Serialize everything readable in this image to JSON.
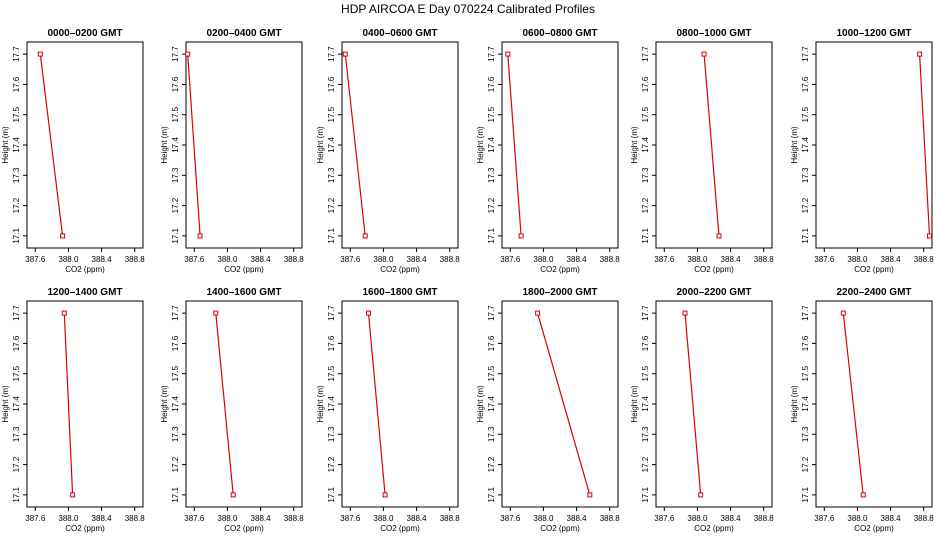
{
  "figure_title": "HDP  AIRCOA E  Day 070224  Calibrated Profiles",
  "colors": {
    "line": "#dd0000",
    "marker": "#dd0000",
    "axis": "#000000"
  },
  "chart_data": [
    {
      "type": "line",
      "title": "0000–0200 GMT",
      "xlabel": "CO2 (ppm)",
      "ylabel": "Height (m)",
      "xlim": [
        387.5,
        388.9
      ],
      "ylim": [
        17.06,
        17.74
      ],
      "xticks": [
        "387.6",
        "388.0",
        "388.4",
        "388.8"
      ],
      "xtick_values": [
        387.6,
        388.0,
        388.4,
        388.8
      ],
      "yticks": [
        "17.1",
        "17.2",
        "17.3",
        "17.4",
        "17.5",
        "17.6",
        "17.7"
      ],
      "ytick_values": [
        17.1,
        17.2,
        17.3,
        17.4,
        17.5,
        17.6,
        17.7
      ],
      "x": [
        387.66,
        387.93
      ],
      "y": [
        17.7,
        17.1
      ]
    },
    {
      "type": "line",
      "title": "0200–0400 GMT",
      "xlabel": "CO2 (ppm)",
      "ylabel": "Height (m)",
      "xlim": [
        387.5,
        388.9
      ],
      "ylim": [
        17.06,
        17.74
      ],
      "xticks": [
        "387.6",
        "388.0",
        "388.4",
        "388.8"
      ],
      "xtick_values": [
        387.6,
        388.0,
        388.4,
        388.8
      ],
      "yticks": [
        "17.1",
        "17.2",
        "17.3",
        "17.4",
        "17.5",
        "17.6",
        "17.7"
      ],
      "ytick_values": [
        17.1,
        17.2,
        17.3,
        17.4,
        17.5,
        17.6,
        17.7
      ],
      "x": [
        387.52,
        387.67
      ],
      "y": [
        17.7,
        17.1
      ]
    },
    {
      "type": "line",
      "title": "0400–0600 GMT",
      "xlabel": "CO2 (ppm)",
      "ylabel": "Height (m)",
      "xlim": [
        387.5,
        388.9
      ],
      "ylim": [
        17.06,
        17.74
      ],
      "xticks": [
        "387.6",
        "388.0",
        "388.4",
        "388.8"
      ],
      "xtick_values": [
        387.6,
        388.0,
        388.4,
        388.8
      ],
      "yticks": [
        "17.1",
        "17.2",
        "17.3",
        "17.4",
        "17.5",
        "17.6",
        "17.7"
      ],
      "ytick_values": [
        17.1,
        17.2,
        17.3,
        17.4,
        17.5,
        17.6,
        17.7
      ],
      "x": [
        387.54,
        387.78
      ],
      "y": [
        17.7,
        17.1
      ]
    },
    {
      "type": "line",
      "title": "0600–0800 GMT",
      "xlabel": "CO2 (ppm)",
      "ylabel": "Height (m)",
      "xlim": [
        387.5,
        388.9
      ],
      "ylim": [
        17.06,
        17.74
      ],
      "xticks": [
        "387.6",
        "388.0",
        "388.4",
        "388.8"
      ],
      "xtick_values": [
        387.6,
        388.0,
        388.4,
        388.8
      ],
      "yticks": [
        "17.1",
        "17.2",
        "17.3",
        "17.4",
        "17.5",
        "17.6",
        "17.7"
      ],
      "ytick_values": [
        17.1,
        17.2,
        17.3,
        17.4,
        17.5,
        17.6,
        17.7
      ],
      "x": [
        387.57,
        387.73
      ],
      "y": [
        17.7,
        17.1
      ]
    },
    {
      "type": "line",
      "title": "0800–1000 GMT",
      "xlabel": "CO2 (ppm)",
      "ylabel": "Height (m)",
      "xlim": [
        387.5,
        388.9
      ],
      "ylim": [
        17.06,
        17.74
      ],
      "xticks": [
        "387.6",
        "388.0",
        "388.4",
        "388.8"
      ],
      "xtick_values": [
        387.6,
        388.0,
        388.4,
        388.8
      ],
      "yticks": [
        "17.1",
        "17.2",
        "17.3",
        "17.4",
        "17.5",
        "17.6",
        "17.7"
      ],
      "ytick_values": [
        17.1,
        17.2,
        17.3,
        17.4,
        17.5,
        17.6,
        17.7
      ],
      "x": [
        388.08,
        388.26
      ],
      "y": [
        17.7,
        17.1
      ]
    },
    {
      "type": "line",
      "title": "1000–1200 GMT",
      "xlabel": "CO2 (ppm)",
      "ylabel": "Height (m)",
      "xlim": [
        387.5,
        388.9
      ],
      "ylim": [
        17.06,
        17.74
      ],
      "xticks": [
        "387.6",
        "388.0",
        "388.4",
        "388.8"
      ],
      "xtick_values": [
        387.6,
        388.0,
        388.4,
        388.8
      ],
      "yticks": [
        "17.1",
        "17.2",
        "17.3",
        "17.4",
        "17.5",
        "17.6",
        "17.7"
      ],
      "ytick_values": [
        17.1,
        17.2,
        17.3,
        17.4,
        17.5,
        17.6,
        17.7
      ],
      "x": [
        388.75,
        388.87
      ],
      "y": [
        17.7,
        17.1
      ]
    },
    {
      "type": "line",
      "title": "1200–1400 GMT",
      "xlabel": "CO2 (ppm)",
      "ylabel": "Height (m)",
      "xlim": [
        387.5,
        388.9
      ],
      "ylim": [
        17.06,
        17.74
      ],
      "xticks": [
        "387.6",
        "388.0",
        "388.4",
        "388.8"
      ],
      "xtick_values": [
        387.6,
        388.0,
        388.4,
        388.8
      ],
      "yticks": [
        "17.1",
        "17.2",
        "17.3",
        "17.4",
        "17.5",
        "17.6",
        "17.7"
      ],
      "ytick_values": [
        17.1,
        17.2,
        17.3,
        17.4,
        17.5,
        17.6,
        17.7
      ],
      "x": [
        387.95,
        388.05
      ],
      "y": [
        17.7,
        17.1
      ]
    },
    {
      "type": "line",
      "title": "1400–1600 GMT",
      "xlabel": "CO2 (ppm)",
      "ylabel": "Height (m)",
      "xlim": [
        387.5,
        388.9
      ],
      "ylim": [
        17.06,
        17.74
      ],
      "xticks": [
        "387.6",
        "388.0",
        "388.4",
        "388.8"
      ],
      "xtick_values": [
        387.6,
        388.0,
        388.4,
        388.8
      ],
      "yticks": [
        "17.1",
        "17.2",
        "17.3",
        "17.4",
        "17.5",
        "17.6",
        "17.7"
      ],
      "ytick_values": [
        17.1,
        17.2,
        17.3,
        17.4,
        17.5,
        17.6,
        17.7
      ],
      "x": [
        387.86,
        388.07
      ],
      "y": [
        17.7,
        17.1
      ]
    },
    {
      "type": "line",
      "title": "1600–1800 GMT",
      "xlabel": "CO2 (ppm)",
      "ylabel": "Height (m)",
      "xlim": [
        387.5,
        388.9
      ],
      "ylim": [
        17.06,
        17.74
      ],
      "xticks": [
        "387.6",
        "388.0",
        "388.4",
        "388.8"
      ],
      "xtick_values": [
        387.6,
        388.0,
        388.4,
        388.8
      ],
      "yticks": [
        "17.1",
        "17.2",
        "17.3",
        "17.4",
        "17.5",
        "17.6",
        "17.7"
      ],
      "ytick_values": [
        17.1,
        17.2,
        17.3,
        17.4,
        17.5,
        17.6,
        17.7
      ],
      "x": [
        387.82,
        388.02
      ],
      "y": [
        17.7,
        17.1
      ]
    },
    {
      "type": "line",
      "title": "1800–2000 GMT",
      "xlabel": "CO2 (ppm)",
      "ylabel": "Height (m)",
      "xlim": [
        387.5,
        388.9
      ],
      "ylim": [
        17.06,
        17.74
      ],
      "xticks": [
        "387.6",
        "388.0",
        "388.4",
        "388.8"
      ],
      "xtick_values": [
        387.6,
        388.0,
        388.4,
        388.8
      ],
      "yticks": [
        "17.1",
        "17.2",
        "17.3",
        "17.4",
        "17.5",
        "17.6",
        "17.7"
      ],
      "ytick_values": [
        17.1,
        17.2,
        17.3,
        17.4,
        17.5,
        17.6,
        17.7
      ],
      "x": [
        387.93,
        388.56
      ],
      "y": [
        17.7,
        17.1
      ]
    },
    {
      "type": "line",
      "title": "2000–2200 GMT",
      "xlabel": "CO2 (ppm)",
      "ylabel": "Height (m)",
      "xlim": [
        387.5,
        388.9
      ],
      "ylim": [
        17.06,
        17.74
      ],
      "xticks": [
        "387.6",
        "388.0",
        "388.4",
        "388.8"
      ],
      "xtick_values": [
        387.6,
        388.0,
        388.4,
        388.8
      ],
      "yticks": [
        "17.1",
        "17.2",
        "17.3",
        "17.4",
        "17.5",
        "17.6",
        "17.7"
      ],
      "ytick_values": [
        17.1,
        17.2,
        17.3,
        17.4,
        17.5,
        17.6,
        17.7
      ],
      "x": [
        387.85,
        388.04
      ],
      "y": [
        17.7,
        17.1
      ]
    },
    {
      "type": "line",
      "title": "2200–2400 GMT",
      "xlabel": "CO2 (ppm)",
      "ylabel": "Height (m)",
      "xlim": [
        387.5,
        388.9
      ],
      "ylim": [
        17.06,
        17.74
      ],
      "xticks": [
        "387.6",
        "388.0",
        "388.4",
        "388.8"
      ],
      "xtick_values": [
        387.6,
        388.0,
        388.4,
        388.8
      ],
      "yticks": [
        "17.1",
        "17.2",
        "17.3",
        "17.4",
        "17.5",
        "17.6",
        "17.7"
      ],
      "ytick_values": [
        17.1,
        17.2,
        17.3,
        17.4,
        17.5,
        17.6,
        17.7
      ],
      "x": [
        387.83,
        388.07
      ],
      "y": [
        17.7,
        17.1
      ]
    }
  ]
}
